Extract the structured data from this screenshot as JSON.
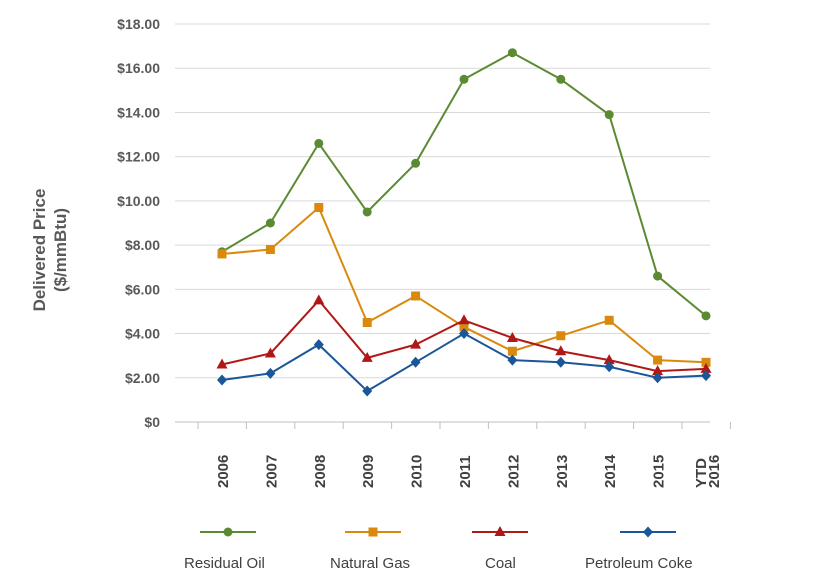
{
  "chart_data": {
    "type": "line",
    "title": "",
    "xlabel": "",
    "ylabel": [
      "Delivered Price",
      "($/mmBtu)"
    ],
    "ylim": [
      0,
      18
    ],
    "yticks": [
      0,
      2,
      4,
      6,
      8,
      10,
      12,
      14,
      16,
      18
    ],
    "ytick_labels": [
      "$0",
      "$2.00",
      "$4.00",
      "$6.00",
      "$8.00",
      "$10.00",
      "$12.00",
      "$14.00",
      "$16.00",
      "$18.00"
    ],
    "categories": [
      "2006",
      "2007",
      "2008",
      "2009",
      "2010",
      "2011",
      "2012",
      "2013",
      "2014",
      "2015",
      "YTD 2016"
    ],
    "category_lines": [
      [
        "2006"
      ],
      [
        "2007"
      ],
      [
        "2008"
      ],
      [
        "2009"
      ],
      [
        "2010"
      ],
      [
        "2011"
      ],
      [
        "2012"
      ],
      [
        "2013"
      ],
      [
        "2014"
      ],
      [
        "2015"
      ],
      [
        "YTD",
        "2016"
      ]
    ],
    "grid": true,
    "legend_position": "bottom",
    "series": [
      {
        "name": "Residual Oil",
        "color": "#5B8A32",
        "marker": "circle",
        "values": [
          7.7,
          9.0,
          12.6,
          9.5,
          11.7,
          15.5,
          16.7,
          15.5,
          13.9,
          6.6,
          4.8
        ]
      },
      {
        "name": "Natural Gas",
        "color": "#D98A0E",
        "marker": "square",
        "values": [
          7.6,
          7.8,
          9.7,
          4.5,
          5.7,
          4.3,
          3.2,
          3.9,
          4.6,
          2.8,
          2.7
        ]
      },
      {
        "name": "Coal",
        "color": "#B01818",
        "marker": "triangle",
        "values": [
          2.6,
          3.1,
          5.5,
          2.9,
          3.5,
          4.6,
          3.8,
          3.2,
          2.8,
          2.3,
          2.4
        ]
      },
      {
        "name": "Petroleum Coke",
        "color": "#1B5699",
        "marker": "diamond",
        "values": [
          1.9,
          2.2,
          3.5,
          1.4,
          2.7,
          4.0,
          2.8,
          2.7,
          2.5,
          2.0,
          2.1
        ]
      }
    ]
  }
}
